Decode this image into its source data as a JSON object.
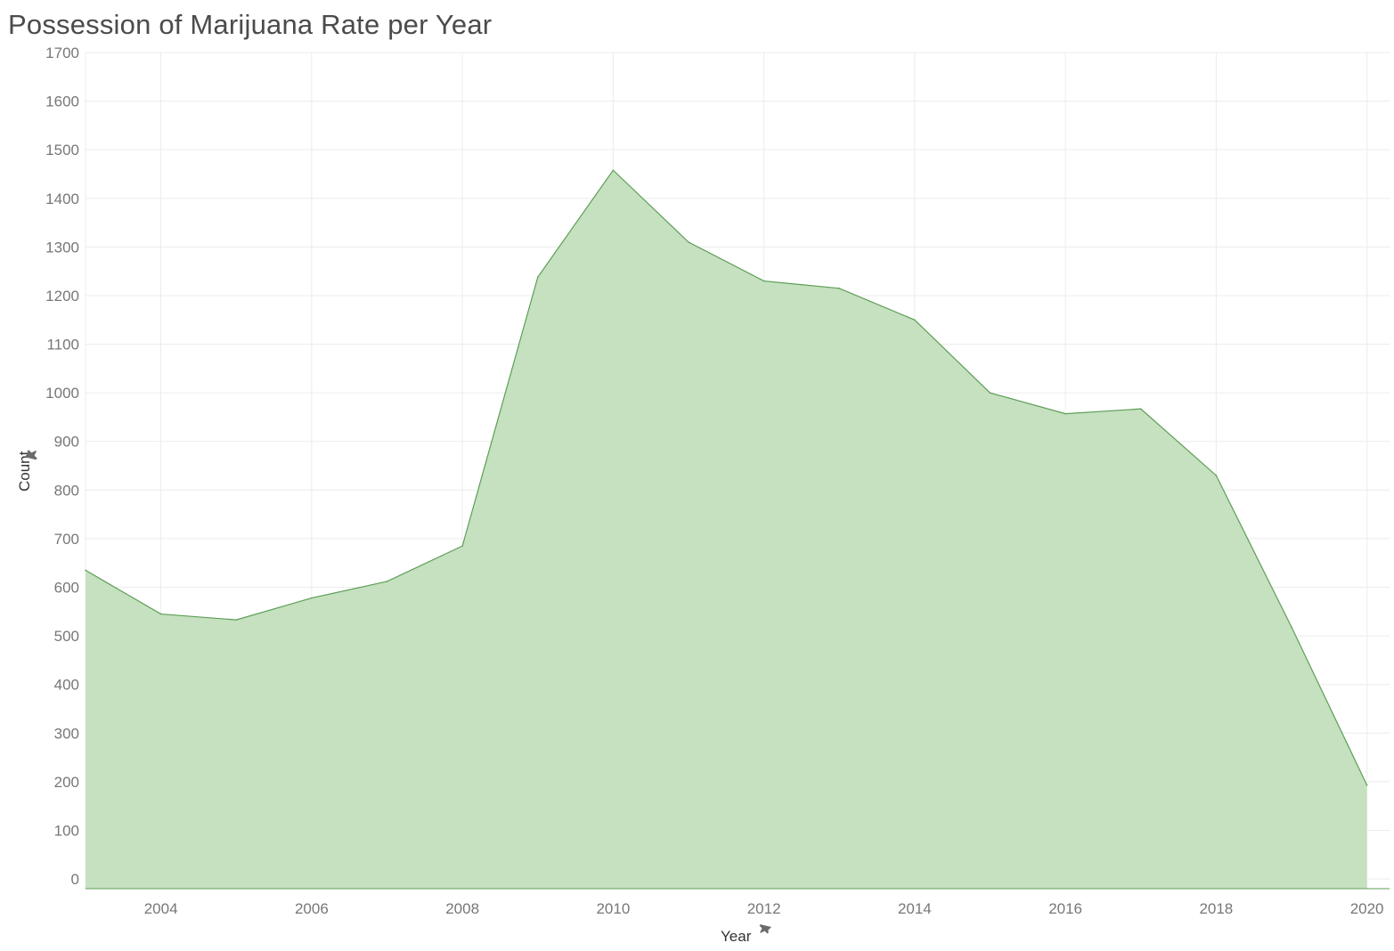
{
  "chart_data": {
    "type": "area",
    "title": "Possession of Marijuana Rate per Year",
    "xlabel": "Year",
    "ylabel": "Count",
    "x": [
      2003,
      2004,
      2005,
      2006,
      2007,
      2008,
      2009,
      2010,
      2011,
      2012,
      2013,
      2014,
      2015,
      2016,
      2017,
      2018,
      2019,
      2020
    ],
    "series": [
      {
        "values": [
          635,
          545,
          533,
          578,
          612,
          685,
          1238,
          1458,
          1310,
          1230,
          1215,
          1150,
          1000,
          957,
          967,
          830,
          518,
          193
        ]
      }
    ],
    "xlim": [
      2003,
      2020.3
    ],
    "ylim": [
      -20,
      1700
    ],
    "x_ticks": [
      2004,
      2006,
      2008,
      2010,
      2012,
      2014,
      2016,
      2018,
      2020
    ],
    "y_ticks": [
      0,
      100,
      200,
      300,
      400,
      500,
      600,
      700,
      800,
      900,
      1000,
      1100,
      1200,
      1300,
      1400,
      1500,
      1600,
      1700
    ],
    "grid": true,
    "legend": "none",
    "fill_color": "#c5e1c0",
    "line_color": "#5e9e56",
    "grid_color": "#ececec"
  }
}
